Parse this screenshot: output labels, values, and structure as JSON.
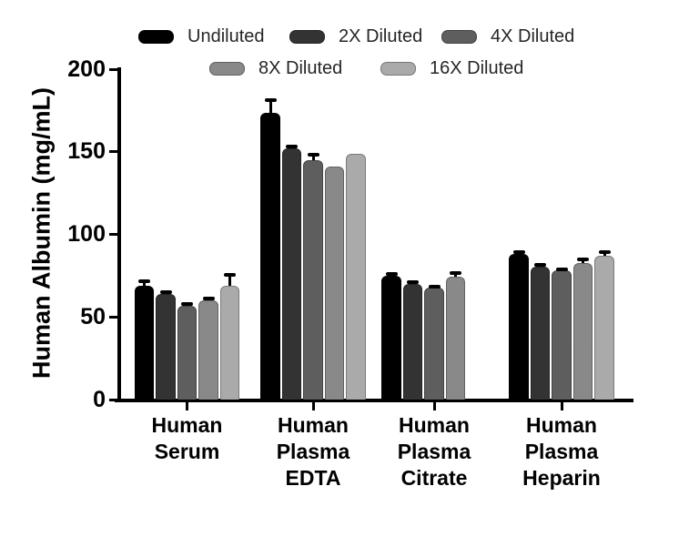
{
  "figure": {
    "background": "#ffffff",
    "axis_color": "#000000",
    "legend_text_color": "#262626"
  },
  "chart_data": {
    "type": "bar",
    "title": "",
    "xlabel": "",
    "ylabel": "Human Albumin (mg/mL)",
    "ylim": [
      0,
      200
    ],
    "yticks": [
      0,
      50,
      100,
      150,
      200
    ],
    "grid": false,
    "legend_position": "top",
    "error_bars": true,
    "categories": [
      "Human Serum",
      "Human Plasma EDTA",
      "Human Plasma Citrate",
      "Human Plasma Heparin"
    ],
    "category_label_lines": [
      [
        "Human",
        "Serum"
      ],
      [
        "Human",
        "Plasma",
        "EDTA"
      ],
      [
        "Human",
        "Plasma",
        "Citrate"
      ],
      [
        "Human",
        "Plasma",
        "Heparin"
      ]
    ],
    "series": [
      {
        "name": "Undiluted",
        "color": "#000000",
        "values": [
          69,
          173.5,
          75,
          88
        ],
        "errors": [
          2.5,
          8,
          0.8,
          1.5
        ]
      },
      {
        "name": "2X Diluted",
        "color": "#333333",
        "values": [
          64,
          152,
          70,
          80.5
        ],
        "errors": [
          1.2,
          1.2,
          1.0,
          1.2
        ]
      },
      {
        "name": "4X Diluted",
        "color": "#5e5e5e",
        "values": [
          57,
          145,
          67.5,
          78
        ],
        "errors": [
          1.0,
          3.0,
          1.0,
          1.0
        ]
      },
      {
        "name": "8X Diluted",
        "color": "#898989",
        "values": [
          60,
          141,
          74.5,
          82.5
        ],
        "errors": [
          1.2,
          0,
          2.0,
          2.5
        ]
      },
      {
        "name": "16X Diluted",
        "color": "#aaaaaa",
        "values": [
          69,
          148.5,
          null,
          87
        ],
        "errors": [
          6.5,
          0,
          null,
          2.0
        ]
      }
    ]
  }
}
